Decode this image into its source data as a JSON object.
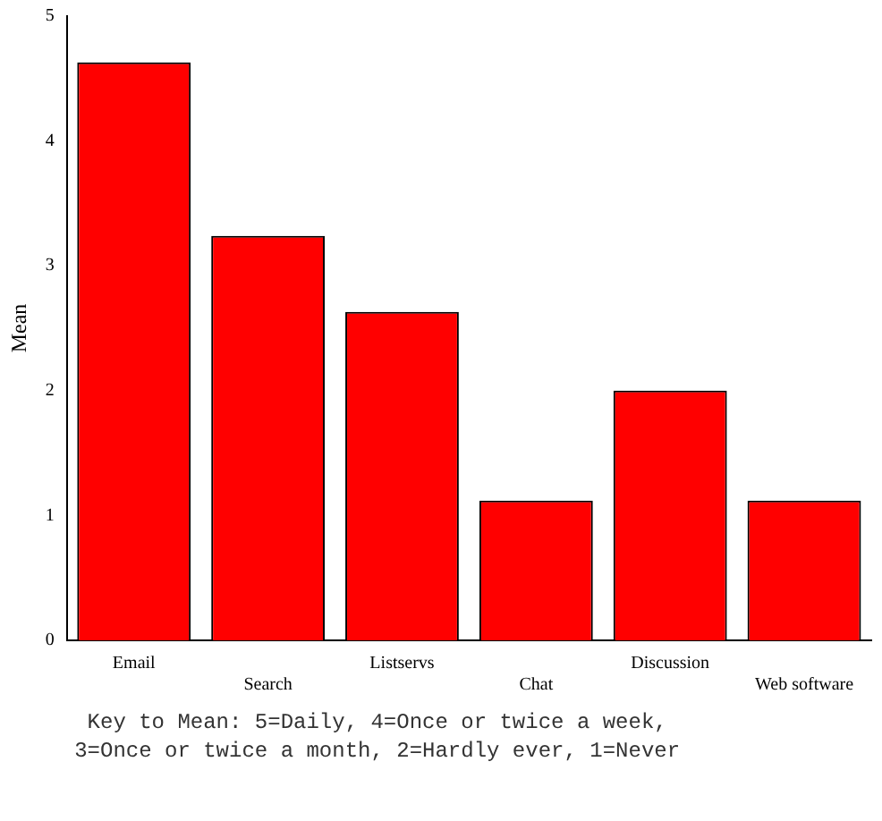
{
  "chart_data": {
    "type": "bar",
    "ylabel": "Mean",
    "categories": [
      "Email",
      "Search",
      "Listservs",
      "Chat",
      "Discussion",
      "Web software"
    ],
    "values": [
      4.63,
      3.24,
      2.63,
      1.12,
      2.0,
      1.12
    ],
    "color": "#ff0000",
    "ylim": [
      0,
      5
    ],
    "yticks": [
      0,
      1,
      2,
      3,
      4,
      5
    ],
    "grid": false,
    "annotations": [
      "Key to Mean: 5=Daily, 4=Once or twice a week, 3=Once or twice a month, 2=Hardly ever, 1=Never"
    ]
  }
}
